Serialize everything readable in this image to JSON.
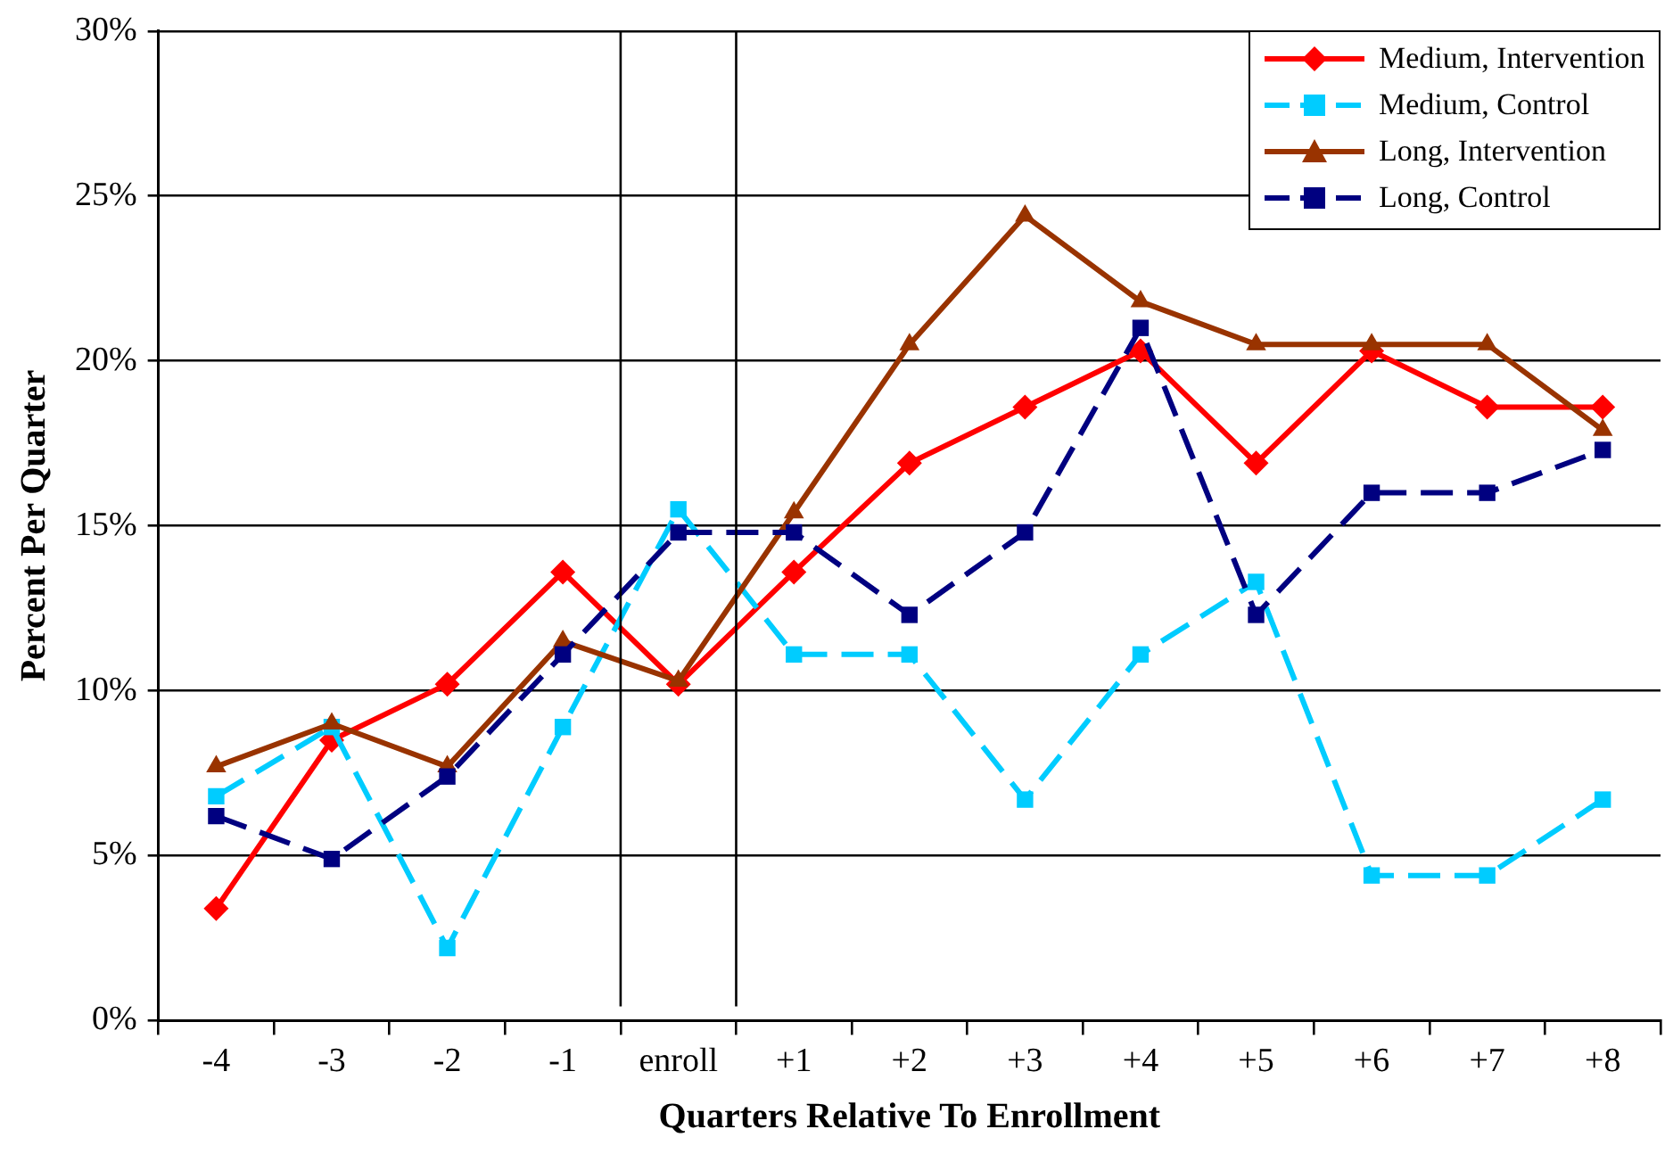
{
  "chart_data": {
    "type": "line",
    "xlabel": "Quarters Relative To Enrollment",
    "ylabel": "Percent Per Quarter",
    "categories": [
      "-4",
      "-3",
      "-2",
      "-1",
      "enroll",
      "+1",
      "+2",
      "+3",
      "+4",
      "+5",
      "+6",
      "+7",
      "+8"
    ],
    "series": [
      {
        "name": "Medium, Intervention",
        "color": "#ff0000",
        "marker": "diamond",
        "line_style": "solid",
        "values": [
          3.4,
          8.5,
          10.2,
          13.6,
          10.2,
          13.6,
          16.9,
          18.6,
          20.3,
          16.9,
          20.3,
          18.6,
          18.6
        ]
      },
      {
        "name": "Medium, Control",
        "color": "#00ccff",
        "marker": "square",
        "line_style": "dashed",
        "values": [
          6.8,
          8.9,
          2.2,
          8.9,
          15.5,
          11.1,
          11.1,
          6.7,
          11.1,
          13.3,
          4.4,
          4.4,
          6.7
        ]
      },
      {
        "name": "Long, Intervention",
        "color": "#993300",
        "marker": "triangle",
        "line_style": "solid",
        "values": [
          7.7,
          9.0,
          7.7,
          11.5,
          10.3,
          15.4,
          20.5,
          24.4,
          21.8,
          20.5,
          20.5,
          20.5,
          17.9
        ]
      },
      {
        "name": "Long, Control",
        "color": "#000080",
        "marker": "square",
        "line_style": "dashed",
        "values": [
          6.2,
          4.9,
          7.4,
          11.1,
          14.8,
          14.8,
          12.3,
          14.8,
          21.0,
          12.3,
          16.0,
          16.0,
          17.3
        ]
      }
    ],
    "ylim": [
      0,
      30
    ],
    "yticks": [
      {
        "value": 0,
        "label": "0%"
      },
      {
        "value": 5,
        "label": "5%"
      },
      {
        "value": 10,
        "label": "10%"
      },
      {
        "value": 15,
        "label": "15%"
      },
      {
        "value": 20,
        "label": "20%"
      },
      {
        "value": 25,
        "label": "25%"
      },
      {
        "value": 30,
        "label": "30%"
      }
    ],
    "grid": "y",
    "legend": "top right"
  }
}
